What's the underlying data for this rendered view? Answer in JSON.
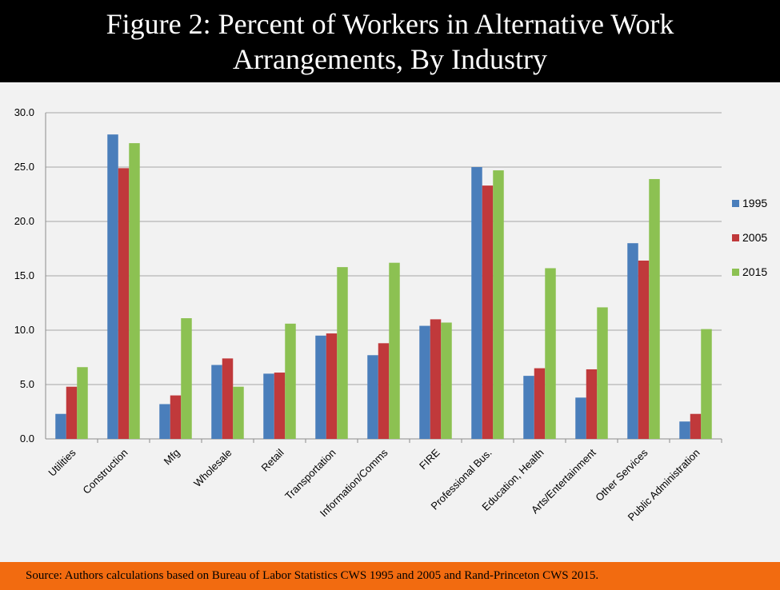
{
  "header": {
    "title": "Figure 2: Percent of Workers in Alternative Work Arrangements, By Industry"
  },
  "footer": {
    "source": "Source: Authors calculations based on Bureau of Labor Statistics CWS 1995 and 2005 and Rand-Princeton CWS 2015."
  },
  "colors": {
    "header_bg": "#000000",
    "chart_bg": "#f2f2f2",
    "footer_bg": "#f26b10"
  },
  "chart_data": {
    "type": "bar",
    "title": "Figure 2: Percent of Workers in Alternative Work Arrangements, By Industry",
    "xlabel": "",
    "ylabel": "",
    "ylim": [
      0,
      30
    ],
    "yticks": [
      "0.0",
      "5.0",
      "10.0",
      "15.0",
      "20.0",
      "25.0",
      "30.0"
    ],
    "grid": true,
    "legend_position": "right",
    "categories": [
      "Utilities",
      "Construction",
      "Mfg",
      "Wholesale",
      "Retail",
      "Transportation",
      "Information/Comms",
      "FIRE",
      "Professional Bus.",
      "Education, Health",
      "Arts/Entertainment",
      "Other Services",
      "Public Administration"
    ],
    "series": [
      {
        "name": "1995",
        "color": "#4a7ebb",
        "values": [
          2.3,
          28.0,
          3.2,
          6.8,
          6.0,
          9.5,
          7.7,
          10.4,
          25.0,
          5.8,
          3.8,
          18.0,
          1.6
        ]
      },
      {
        "name": "2005",
        "color": "#c0393b",
        "values": [
          4.8,
          24.9,
          4.0,
          7.4,
          6.1,
          9.7,
          8.8,
          11.0,
          23.3,
          6.5,
          6.4,
          16.4,
          2.3
        ]
      },
      {
        "name": "2015",
        "color": "#8cc152",
        "values": [
          6.6,
          27.2,
          11.1,
          4.8,
          10.6,
          15.8,
          16.2,
          10.7,
          24.7,
          15.7,
          12.1,
          23.9,
          10.1
        ]
      }
    ]
  }
}
